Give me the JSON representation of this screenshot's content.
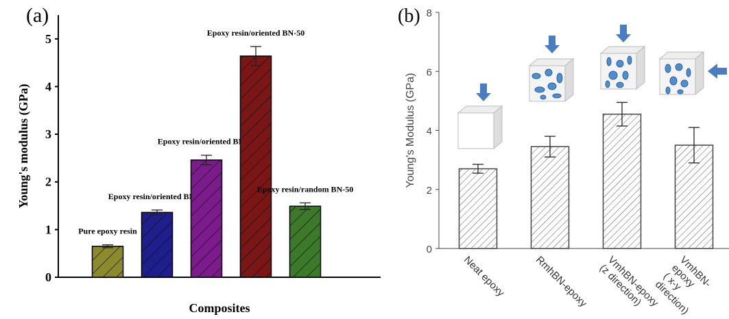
{
  "chart_data": [
    {
      "type": "bar",
      "panel": "(a)",
      "categories": [
        null,
        null,
        null,
        null,
        null
      ],
      "annotations": [
        "Pure epoxy resin",
        "Epoxy resin/oriented BN-10",
        "Epoxy resin/oriented BN-30",
        "Epoxy resin/oriented BN-50",
        "Epoxy resin/random BN-50"
      ],
      "values": [
        0.65,
        1.36,
        2.46,
        4.64,
        1.49
      ],
      "errors": [
        0.03,
        0.05,
        0.1,
        0.2,
        0.07
      ],
      "colors": [
        "#8c8a2c",
        "#1e1e8c",
        "#7c1c8c",
        "#7a1616",
        "#3c7a2a"
      ],
      "hatch": true,
      "ylim": [
        0,
        5.5
      ],
      "yticks": [
        0,
        1,
        2,
        3,
        4,
        5
      ],
      "xlabel": "Composites",
      "ylabel": "Young's modulus (GPa)"
    },
    {
      "type": "bar",
      "panel": "(b)",
      "categories": [
        "Neat epoxy",
        "RmhBN-epoxy",
        "VmhBN-epoxy\n(z direction)",
        "VmhBN-epoxy\n( x-y direction)"
      ],
      "values": [
        2.7,
        3.45,
        4.55,
        3.5
      ],
      "errors": [
        0.15,
        0.35,
        0.4,
        0.6
      ],
      "color": "#ffffff",
      "hatch": true,
      "ylim": [
        0,
        8
      ],
      "yticks": [
        0,
        2,
        4,
        6,
        8
      ],
      "ylabel": "Young's Modulus (GPa)"
    }
  ]
}
